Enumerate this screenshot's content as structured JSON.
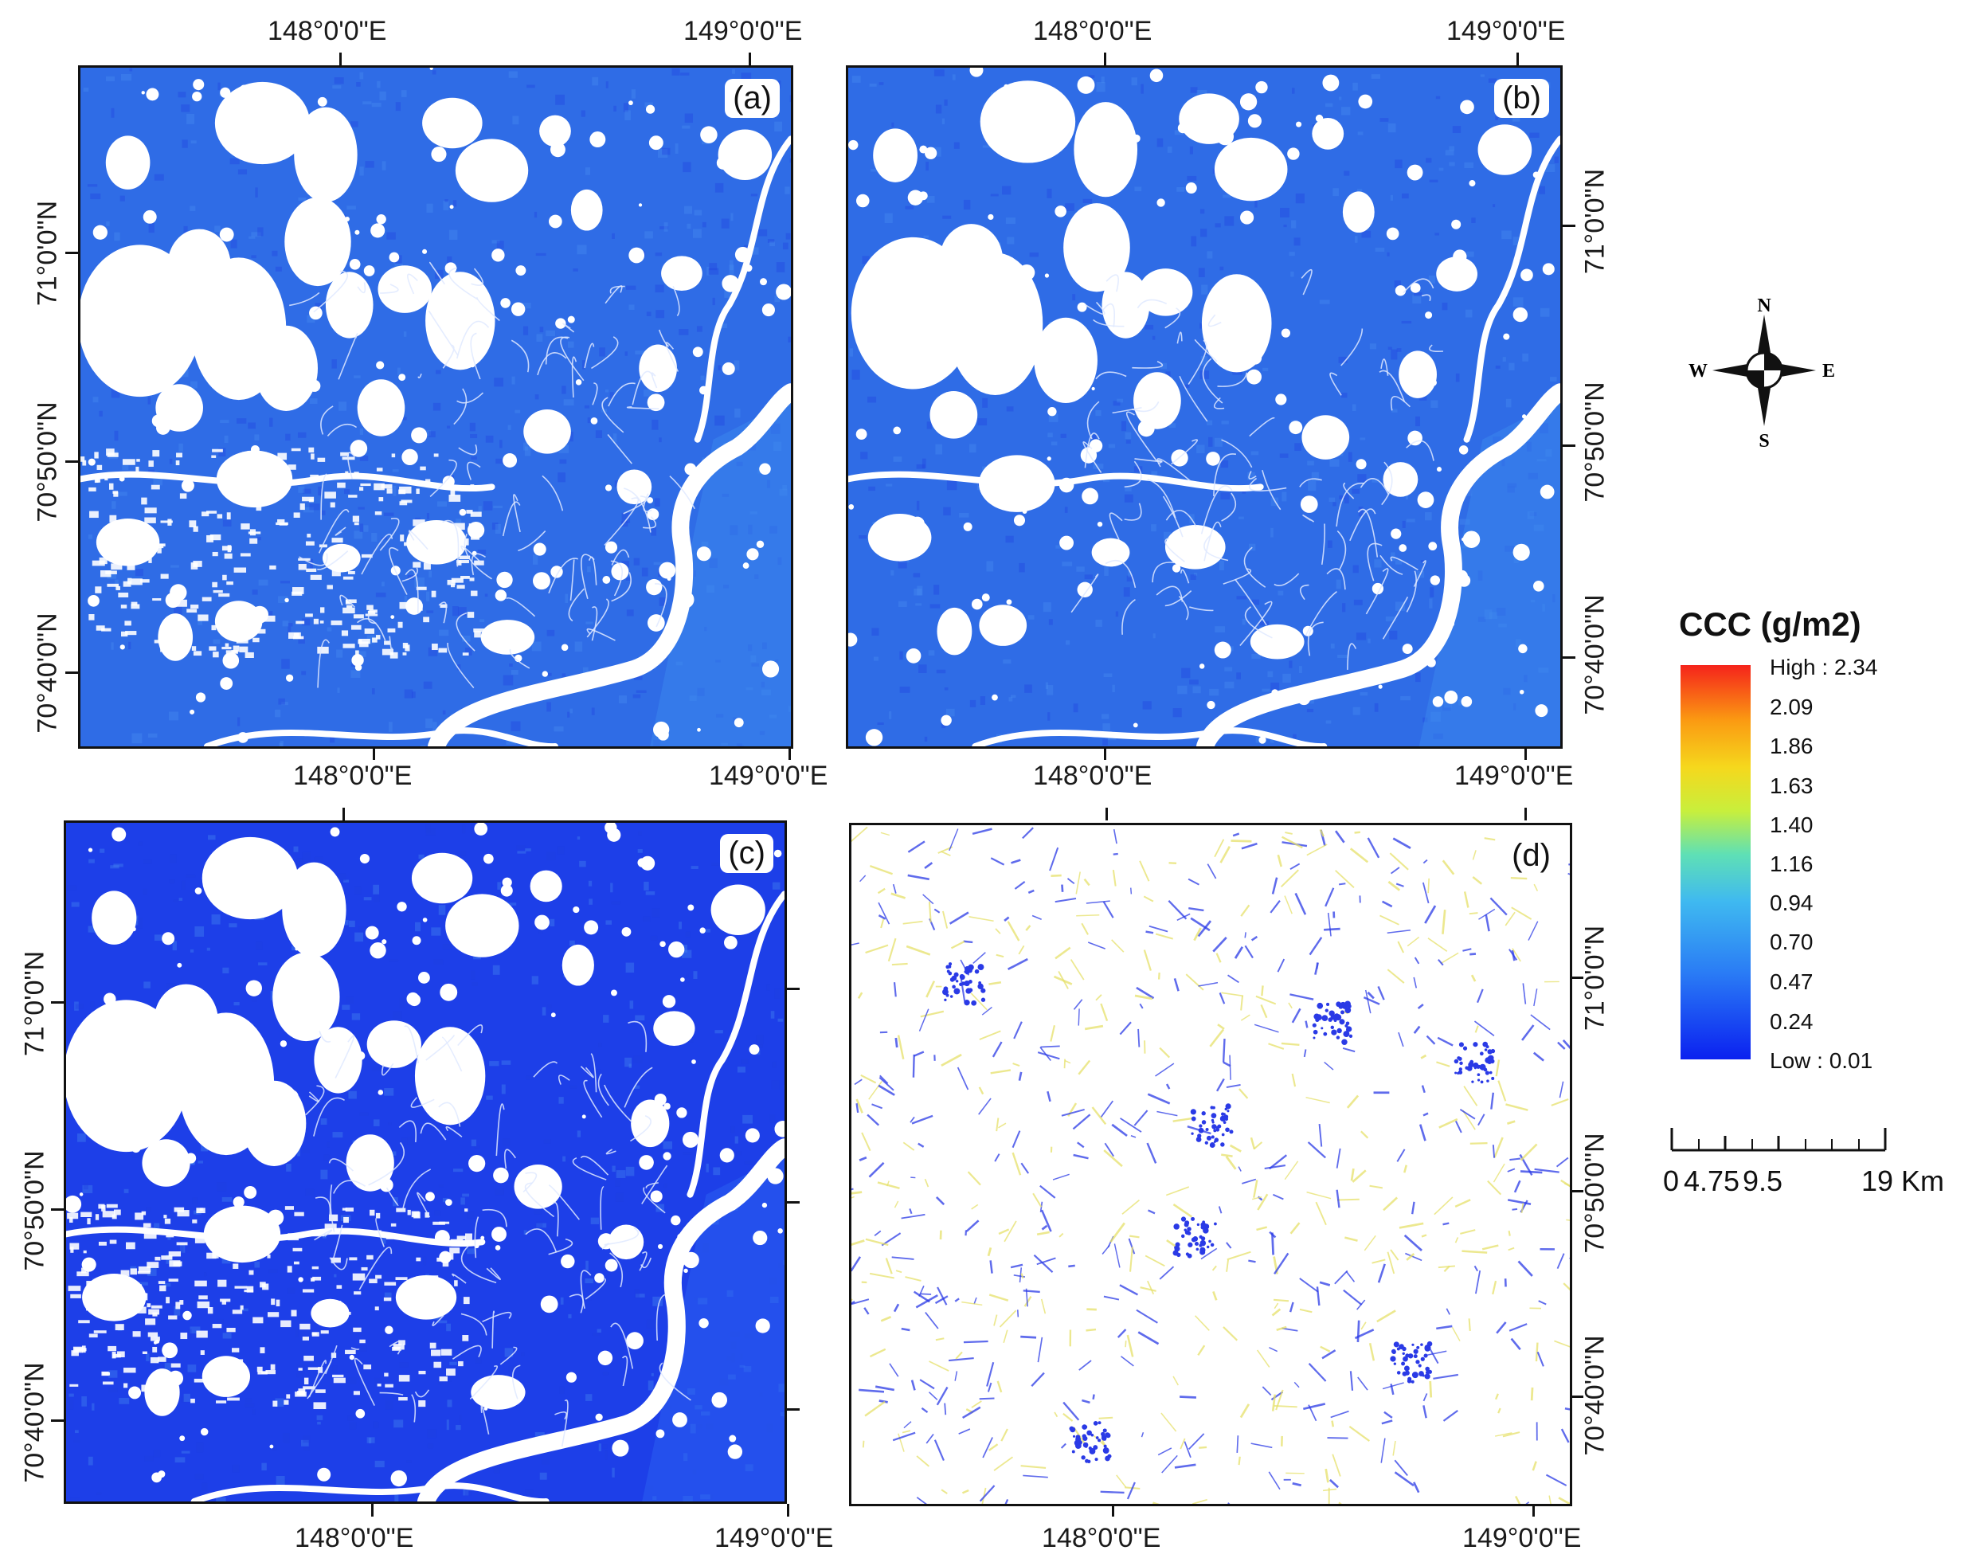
{
  "panels": [
    {
      "tag": "(a)",
      "variant": "base"
    },
    {
      "tag": "(b)",
      "variant": "alt"
    },
    {
      "tag": "(c)",
      "variant": "dark"
    },
    {
      "tag": "(d)",
      "variant": "diff"
    }
  ],
  "axes": {
    "lon_148": "148°0'0\"E",
    "lon_149": "149°0'0\"E",
    "lat_71_0": "71°0'0\"N",
    "lat_70_50": "70°50'0\"N",
    "lat_70_40": "70°40'0\"N"
  },
  "legend": {
    "title": "CCC (g/m2)",
    "high": "High : 2.34",
    "low": "Low : 0.01",
    "ticks": [
      "2.09",
      "1.86",
      "1.63",
      "1.40",
      "1.16",
      "0.94",
      "0.70",
      "0.47",
      "0.24"
    ],
    "colors": [
      "#0b21f0",
      "#2a7cf5",
      "#3fb9f0",
      "#5fe0b5",
      "#c8ef3c",
      "#f5d81d",
      "#fb9a12",
      "#f5231b"
    ]
  },
  "compass": {
    "n": "N",
    "s": "S",
    "e": "E",
    "w": "W"
  },
  "scale_bar": {
    "label_0": "0",
    "label_1": "4.75",
    "label_2": "9.5",
    "label_3": "19 Km"
  },
  "colors": {
    "water_background": "#2f6ce6",
    "dark_background": "#1d3fe8",
    "lake": "#ffffff",
    "river": "#ffffff",
    "diff_blue": "#2a3ae6",
    "diff_yellow": "#e6e06a"
  }
}
